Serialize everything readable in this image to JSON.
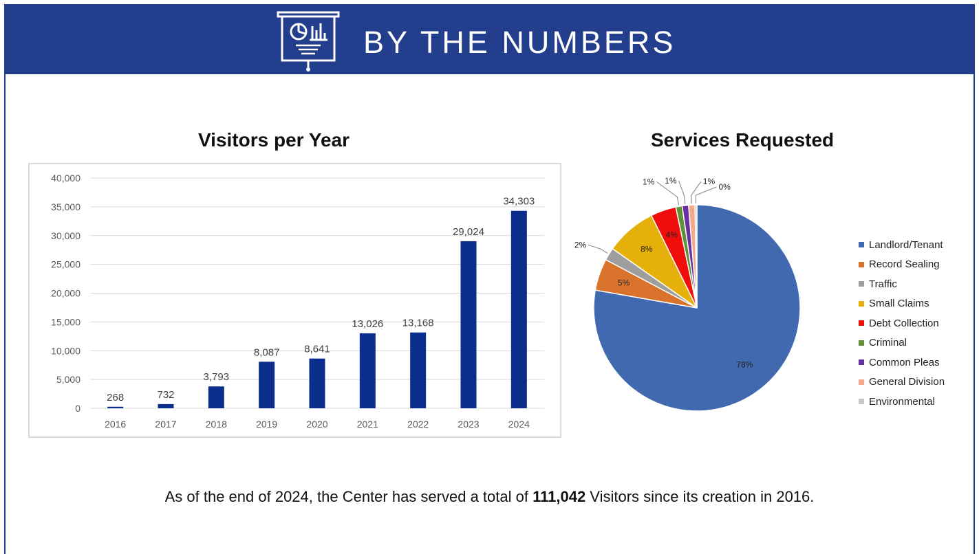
{
  "banner": {
    "title": "BY THE NUMBERS",
    "icon": "presentation-board-icon",
    "color": "#233e8d"
  },
  "chart_data": [
    {
      "type": "bar",
      "title": "Visitors per Year",
      "categories": [
        "2016",
        "2017",
        "2018",
        "2019",
        "2020",
        "2021",
        "2022",
        "2023",
        "2024"
      ],
      "values": [
        268,
        732,
        3793,
        8087,
        8641,
        13026,
        13168,
        29024,
        34303
      ],
      "value_labels": [
        "268",
        "732",
        "3,793",
        "8,087",
        "8,641",
        "13,026",
        "13,168",
        "29,024",
        "34,303"
      ],
      "y_ticks": [
        "0",
        "5,000",
        "10,000",
        "15,000",
        "20,000",
        "25,000",
        "30,000",
        "35,000",
        "40,000"
      ],
      "ylim": [
        0,
        40000
      ],
      "grid": true,
      "bar_color": "#0b2d8c",
      "xlabel": "",
      "ylabel": ""
    },
    {
      "type": "pie",
      "title": "Services Requested",
      "legend_position": "right",
      "slices": [
        {
          "name": "Landlord/Tenant",
          "value": 78,
          "label": "78%",
          "color": "#4169b0"
        },
        {
          "name": "Record Sealing",
          "value": 5,
          "label": "5%",
          "color": "#d9722b"
        },
        {
          "name": "Traffic",
          "value": 2,
          "label": "2%",
          "color": "#9e9e9e"
        },
        {
          "name": "Small Claims",
          "value": 8,
          "label": "8%",
          "color": "#e6b00a"
        },
        {
          "name": "Debt Collection",
          "value": 4,
          "label": "4%",
          "color": "#f20d0d"
        },
        {
          "name": "Criminal",
          "value": 1,
          "label": "1%",
          "color": "#5f9136"
        },
        {
          "name": "Common Pleas",
          "value": 1,
          "label": "1%",
          "color": "#6a2fa0"
        },
        {
          "name": "General Division",
          "value": 1,
          "label": "1%",
          "color": "#f4a98e"
        },
        {
          "name": "Environmental",
          "value": 0.3,
          "label": "0%",
          "color": "#c7c7c7"
        }
      ]
    }
  ],
  "summary": {
    "before": "As of the end of 2024, the Center has served a total of ",
    "total": "111,042",
    "after": " Visitors since its creation in 2016."
  }
}
